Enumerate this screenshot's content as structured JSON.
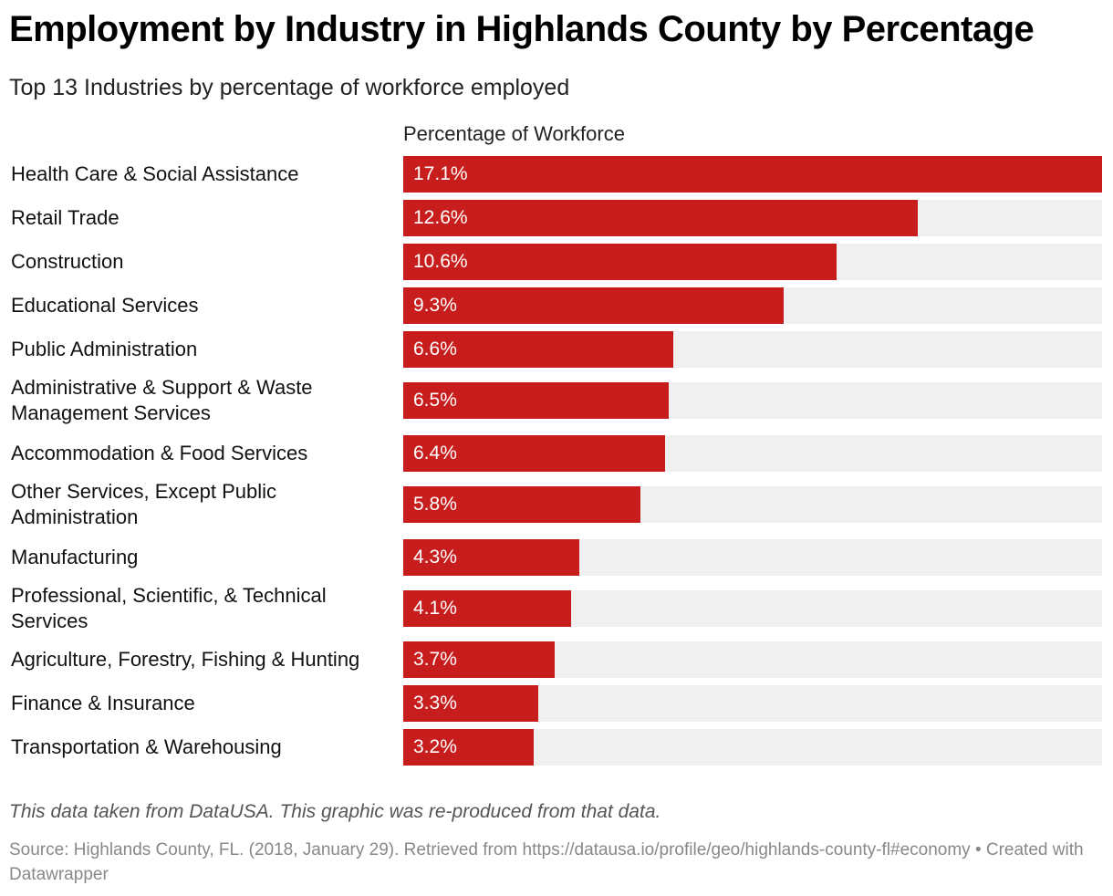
{
  "title": "Employment by Industry in Highlands County by Percentage",
  "subtitle": "Top 13 Industries by percentage of workforce employed",
  "footer": {
    "note": "This data taken from DataUSA. This graphic was re-produced from that data.",
    "source": "Source: Highlands County, FL. (2018, January 29). Retrieved from https://datausa.io/profile/geo/highlands-county-fl#economy • Created with Datawrapper"
  },
  "colors": {
    "bar": "#c71e1d",
    "track": "#f0f0f0",
    "value_text": "#ffffff"
  },
  "chart_data": {
    "type": "bar",
    "orientation": "horizontal",
    "title": "Employment by Industry in Highlands County by Percentage",
    "subtitle": "Top 13 Industries by percentage of workforce employed",
    "column_header": "Percentage of Workforce",
    "categories": [
      "Health Care & Social Assistance",
      "Retail Trade",
      "Construction",
      "Educational Services",
      "Public Administration",
      "Administrative & Support & Waste Management Services",
      "Accommodation & Food Services",
      "Other Services, Except Public Administration",
      "Manufacturing",
      "Professional, Scientific, & Technical Services",
      "Agriculture, Forestry, Fishing & Hunting",
      "Finance & Insurance",
      "Transportation & Warehousing"
    ],
    "values": [
      17.1,
      12.6,
      10.6,
      9.3,
      6.6,
      6.5,
      6.4,
      5.8,
      4.3,
      4.1,
      3.7,
      3.3,
      3.2
    ],
    "value_labels": [
      "17.1%",
      "12.6%",
      "10.6%",
      "9.3%",
      "6.6%",
      "6.5%",
      "6.4%",
      "5.8%",
      "4.3%",
      "4.1%",
      "3.7%",
      "3.3%",
      "3.2%"
    ],
    "xlim": [
      0,
      17.1
    ],
    "unit": "%"
  }
}
